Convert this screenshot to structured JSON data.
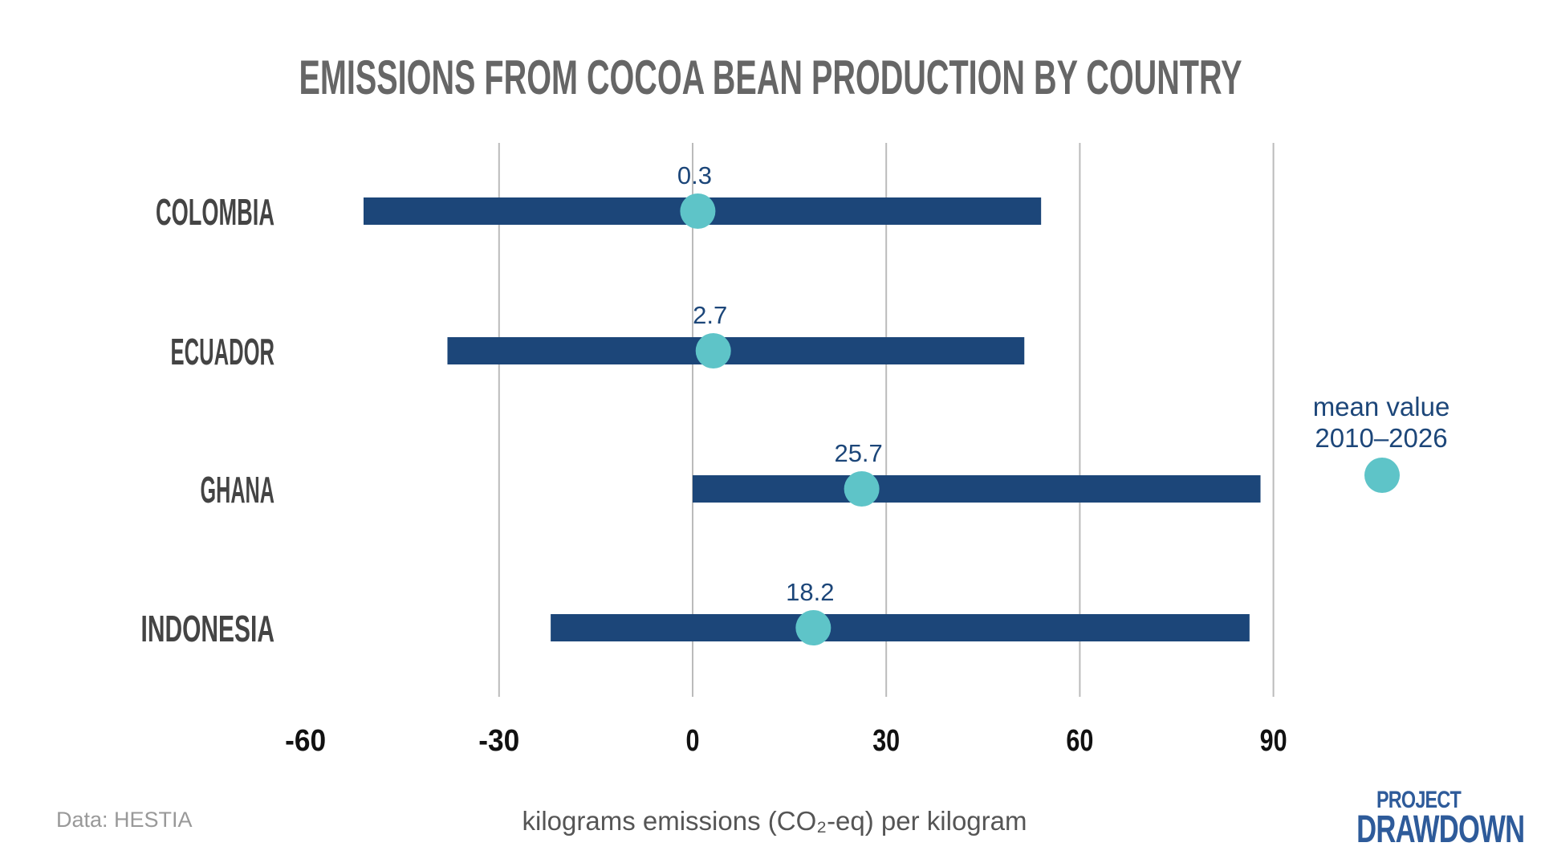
{
  "chart_data": {
    "type": "range-dot",
    "title": "EMISSIONS FROM COCOA BEAN PRODUCTION BY COUNTRY",
    "xlabel": "kilograms emissions (CO₂-eq) per kilogram",
    "xlim": [
      -60,
      105
    ],
    "xticks": [
      -60,
      -30,
      0,
      30,
      60,
      90
    ],
    "grid": true,
    "categories": [
      "COLOMBIA",
      "ECUADOR",
      "GHANA",
      "INDONESIA"
    ],
    "ranges": [
      [
        -51,
        54
      ],
      [
        -38,
        51.4
      ],
      [
        0,
        88
      ],
      [
        -22,
        86.3
      ]
    ],
    "means": [
      0.3,
      2.7,
      25.7,
      18.2
    ],
    "mean_labels": [
      "0.3",
      "2.7",
      "25.7",
      "18.2"
    ],
    "legend": {
      "line1": "mean value",
      "line2": "2010–2026",
      "placement": "right"
    },
    "colors": {
      "bar": "#1c4679",
      "dot": "#5ec4c8",
      "label": "#1c4679",
      "grid": "#bbbbbb",
      "title": "#666666",
      "category": "#444444",
      "tick": "#111111"
    }
  },
  "footer": {
    "source": "Data: HESTIA",
    "logo_line1": "PROJECT",
    "logo_line2": "DRAWDOWN"
  }
}
